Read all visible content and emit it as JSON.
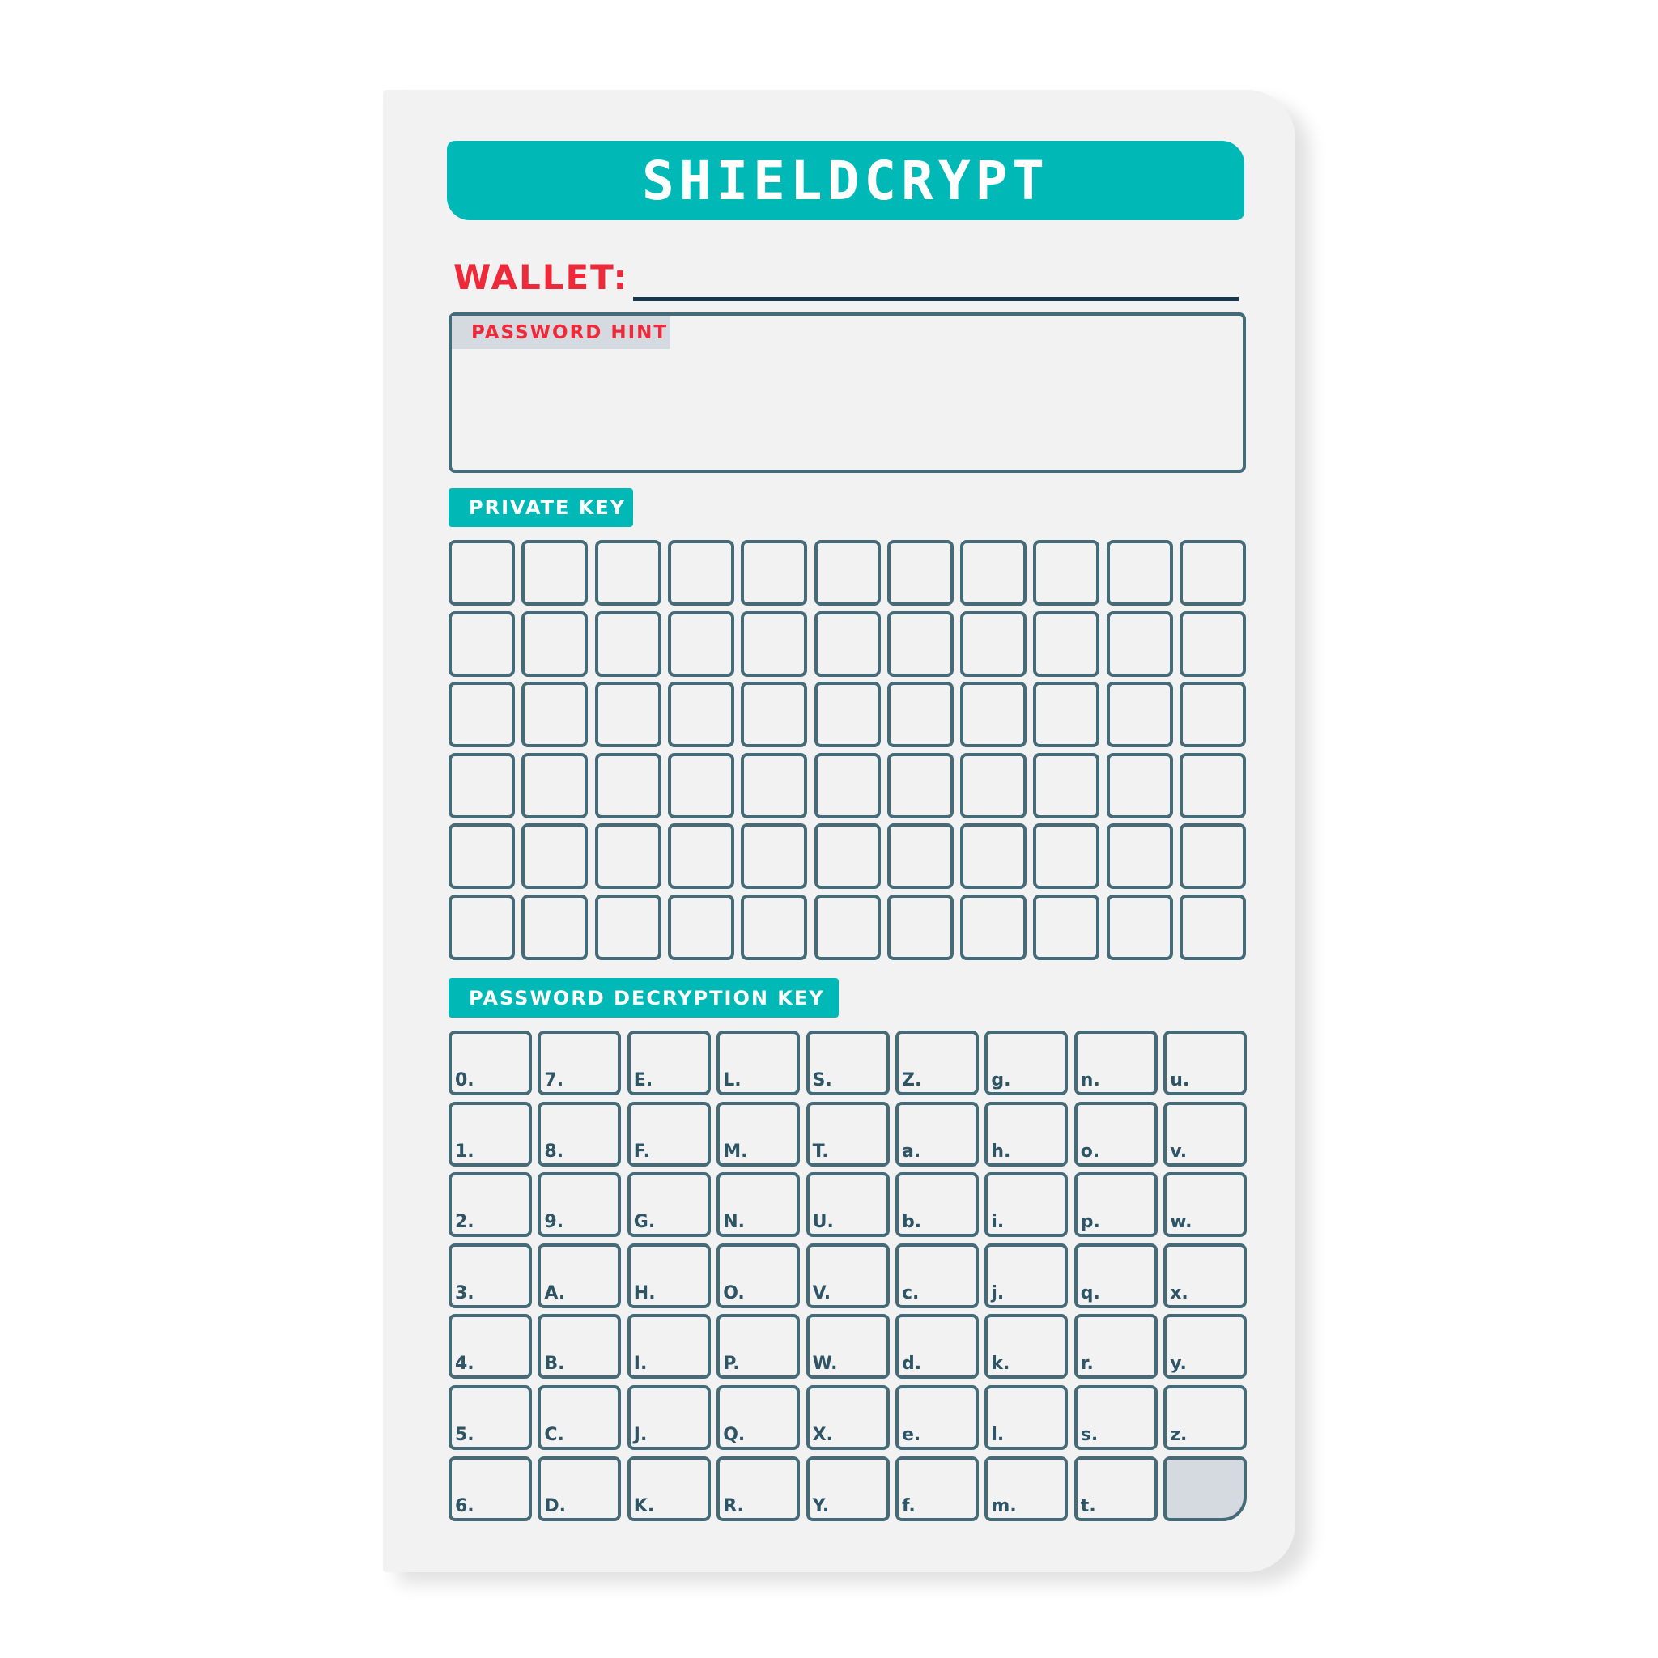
{
  "title": "SHIELDCRYPT",
  "wallet_label": "WALLET:",
  "password_hint_label": "PASSWORD HINT",
  "private_key_label": "PRIVATE KEY",
  "private_key_grid": {
    "rows": 6,
    "cols": 11
  },
  "decryption_key_label": "PASSWORD DECRYPTION KEY",
  "decryption_key_rows": [
    [
      "0.",
      "7.",
      "E.",
      "L.",
      "S.",
      "Z.",
      "g.",
      "n.",
      "u."
    ],
    [
      "1.",
      "8.",
      "F.",
      "M.",
      "T.",
      "a.",
      "h.",
      "o.",
      "v."
    ],
    [
      "2.",
      "9.",
      "G.",
      "N.",
      "U.",
      "b.",
      "i.",
      "p.",
      "w."
    ],
    [
      "3.",
      "A.",
      "H.",
      "O.",
      "V.",
      "c.",
      "j.",
      "q.",
      "x."
    ],
    [
      "4.",
      "B.",
      "I.",
      "P.",
      "W.",
      "d.",
      "k.",
      "r.",
      "y."
    ],
    [
      "5.",
      "C.",
      "J.",
      "Q.",
      "X.",
      "e.",
      "l.",
      "s.",
      "z."
    ],
    [
      "6.",
      "D.",
      "K.",
      "R.",
      "Y.",
      "f.",
      "m.",
      "t.",
      ""
    ]
  ],
  "colors": {
    "accent": "#00b8b6",
    "label_red": "#ee2a3a",
    "border": "#456b78"
  }
}
